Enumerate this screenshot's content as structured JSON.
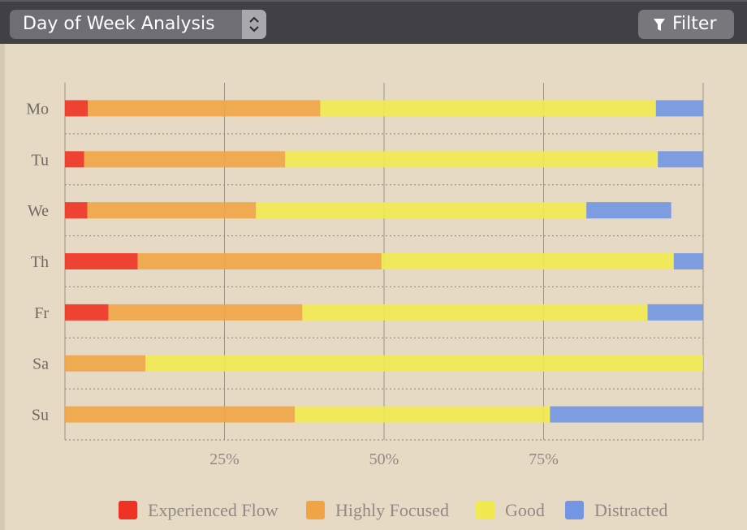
{
  "toolbar": {
    "select_value": "Day of Week Analysis",
    "filter_label": "Filter"
  },
  "colors": {
    "Experienced Flow": "#ee3224",
    "Highly Focused": "#f0a446",
    "Good": "#f0ea50",
    "Distracted": "#7296e4"
  },
  "chart_data": {
    "type": "bar",
    "orientation": "horizontal",
    "stacked": true,
    "categories": [
      "Mo",
      "Tu",
      "We",
      "Th",
      "Fr",
      "Sa",
      "Su"
    ],
    "series": [
      {
        "name": "Experienced Flow",
        "values": [
          3.6,
          3.0,
          3.5,
          11.4,
          6.8,
          0,
          0
        ]
      },
      {
        "name": "Highly Focused",
        "values": [
          36.4,
          31.5,
          26.4,
          38.2,
          30.4,
          12.6,
          36.0
        ]
      },
      {
        "name": "Good",
        "values": [
          52.6,
          58.4,
          51.8,
          45.8,
          54.1,
          87.4,
          40.0
        ]
      },
      {
        "name": "Distracted",
        "values": [
          7.4,
          7.1,
          13.3,
          4.6,
          8.7,
          0,
          24.0
        ]
      }
    ],
    "xlim": [
      0,
      100
    ],
    "x_ticks": [
      "25%",
      "50%",
      "75%"
    ],
    "x_tick_values": [
      25,
      50,
      75
    ],
    "grid": true,
    "legend": "bottom"
  }
}
